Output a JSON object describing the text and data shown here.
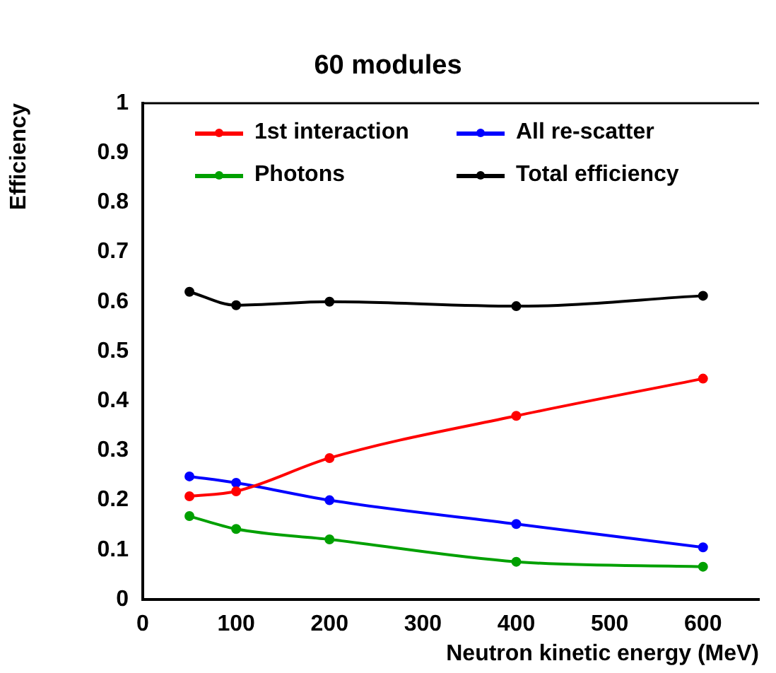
{
  "chart_data": {
    "type": "line",
    "title": "60 modules",
    "xlabel": "Neutron kinetic energy (MeV)",
    "ylabel": "Efficiency",
    "x": [
      50,
      100,
      200,
      400,
      600
    ],
    "series": [
      {
        "name": "1st interaction",
        "color": "#ff0000",
        "values": [
          0.208,
          0.218,
          0.285,
          0.37,
          0.445
        ]
      },
      {
        "name": "All re-scatter",
        "color": "#0000ff",
        "values": [
          0.248,
          0.235,
          0.2,
          0.152,
          0.105
        ]
      },
      {
        "name": "Photons",
        "color": "#00a000",
        "values": [
          0.168,
          0.142,
          0.121,
          0.076,
          0.066
        ]
      },
      {
        "name": "Total efficiency",
        "color": "#000000",
        "values": [
          0.62,
          0.593,
          0.6,
          0.591,
          0.612
        ]
      }
    ],
    "xlim": [
      0,
      660
    ],
    "xticks": [
      0,
      100,
      200,
      300,
      400,
      500,
      600
    ],
    "ylim": [
      0,
      1
    ],
    "yticks": [
      0,
      0.1,
      0.2,
      0.3,
      0.4,
      0.5,
      0.6,
      0.7,
      0.8,
      0.9,
      1
    ],
    "grid": false,
    "legend": "top",
    "marker": "circle",
    "line_style": "solid"
  }
}
